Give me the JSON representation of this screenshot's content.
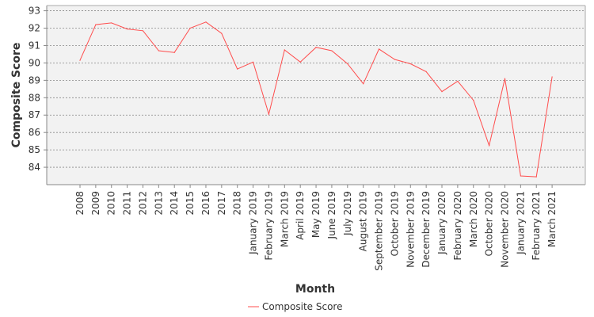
{
  "chart_data": {
    "type": "line",
    "xlabel": "Month",
    "ylabel": "Composite Score",
    "ylim": [
      83.0,
      93.3
    ],
    "yticks": [
      84,
      85,
      86,
      87,
      88,
      89,
      90,
      91,
      92,
      93
    ],
    "grid": true,
    "legend_position": "bottom-center",
    "categories": [
      "2008",
      "2009",
      "2010",
      "2011",
      "2012",
      "2013",
      "2014",
      "2015",
      "2016",
      "2017",
      "2018",
      "January 2019",
      "February 2019",
      "March 2019",
      "April 2019",
      "May 2019",
      "June 2019",
      "July 2019",
      "August 2019",
      "September 2019",
      "October 2019",
      "November 2019",
      "December 2019",
      "January 2020",
      "February 2020",
      "March 2020",
      "October 2020",
      "November 2020",
      "January 2021",
      "February 2021",
      "March 2021"
    ],
    "series": [
      {
        "name": "Composite Score",
        "color": "#ff4d4d",
        "values": [
          90.15,
          92.2,
          92.3,
          91.95,
          91.85,
          90.7,
          90.6,
          92.0,
          92.35,
          91.7,
          89.65,
          90.05,
          87.05,
          90.75,
          90.05,
          90.9,
          90.7,
          89.95,
          88.8,
          90.8,
          90.2,
          89.95,
          89.5,
          88.35,
          88.95,
          87.85,
          85.25,
          89.1,
          83.5,
          83.45,
          89.2
        ]
      }
    ]
  }
}
